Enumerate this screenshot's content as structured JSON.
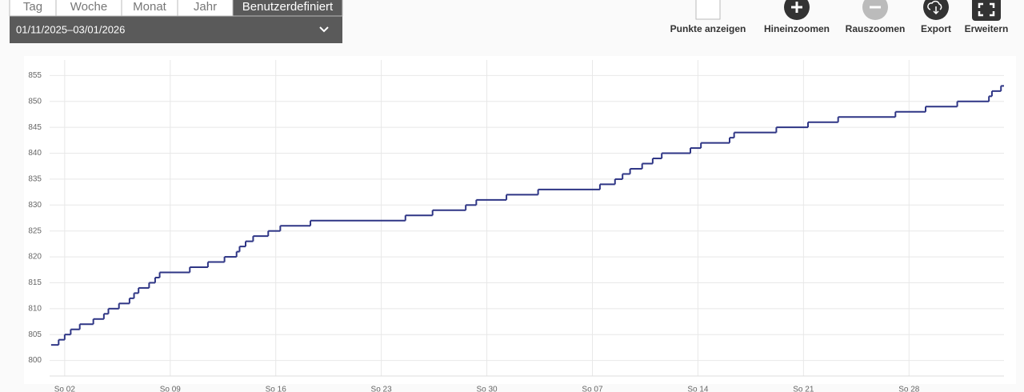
{
  "tabs": [
    "Tag",
    "Woche",
    "Monat",
    "Jahr",
    "Benutzerdefiniert"
  ],
  "date_range": "01/11/2025–03/01/2026",
  "toolbar": [
    "Punkte anzeigen",
    "Hineinzoomen",
    "Rauszoomen",
    "Export",
    "Erweitern"
  ],
  "chart_data": {
    "type": "step-line",
    "x": [
      0.1,
      0.6,
      1.0,
      1.4,
      2.0,
      2.9,
      3.6,
      3.9,
      4.6,
      5.3,
      5.6,
      5.9,
      6.6,
      7.0,
      7.3,
      9.3,
      10.5,
      11.6,
      12.4,
      12.6,
      13.0,
      13.5,
      14.5,
      15.3,
      17.3,
      23.6,
      25.4,
      27.6,
      28.3,
      30.3,
      32.4,
      36.5,
      37.5,
      38.0,
      38.5,
      39.3,
      40.0,
      40.6,
      42.5,
      43.2,
      45.1,
      45.4,
      48.2,
      50.3,
      52.3,
      56.1,
      58.1,
      60.2,
      62.3,
      62.5,
      63.1
    ],
    "values": [
      803,
      804,
      805,
      806,
      807,
      808,
      809,
      810,
      811,
      812,
      813,
      814,
      815,
      816,
      817,
      818,
      819,
      820,
      821,
      822,
      823,
      824,
      825,
      826,
      827,
      828,
      829,
      830,
      831,
      832,
      833,
      834,
      835,
      836,
      837,
      838,
      839,
      840,
      841,
      842,
      843,
      844,
      845,
      846,
      847,
      848,
      849,
      850,
      851,
      852,
      853
    ],
    "color": "#2e3585",
    "xlim": [
      0,
      63.3
    ],
    "xticks": [
      {
        "value": 1,
        "label": "So 02"
      },
      {
        "value": 8,
        "label": "So 09"
      },
      {
        "value": 15,
        "label": "So 16"
      },
      {
        "value": 22,
        "label": "So 23"
      },
      {
        "value": 29,
        "label": "So 30"
      },
      {
        "value": 36,
        "label": "So 07"
      },
      {
        "value": 43,
        "label": "So 14"
      },
      {
        "value": 50,
        "label": "So 21"
      },
      {
        "value": 57,
        "label": "So 28"
      }
    ],
    "ylim": [
      797,
      858
    ],
    "yticks": [
      800,
      805,
      810,
      815,
      820,
      825,
      830,
      835,
      840,
      845,
      850,
      855
    ],
    "grid": true
  }
}
